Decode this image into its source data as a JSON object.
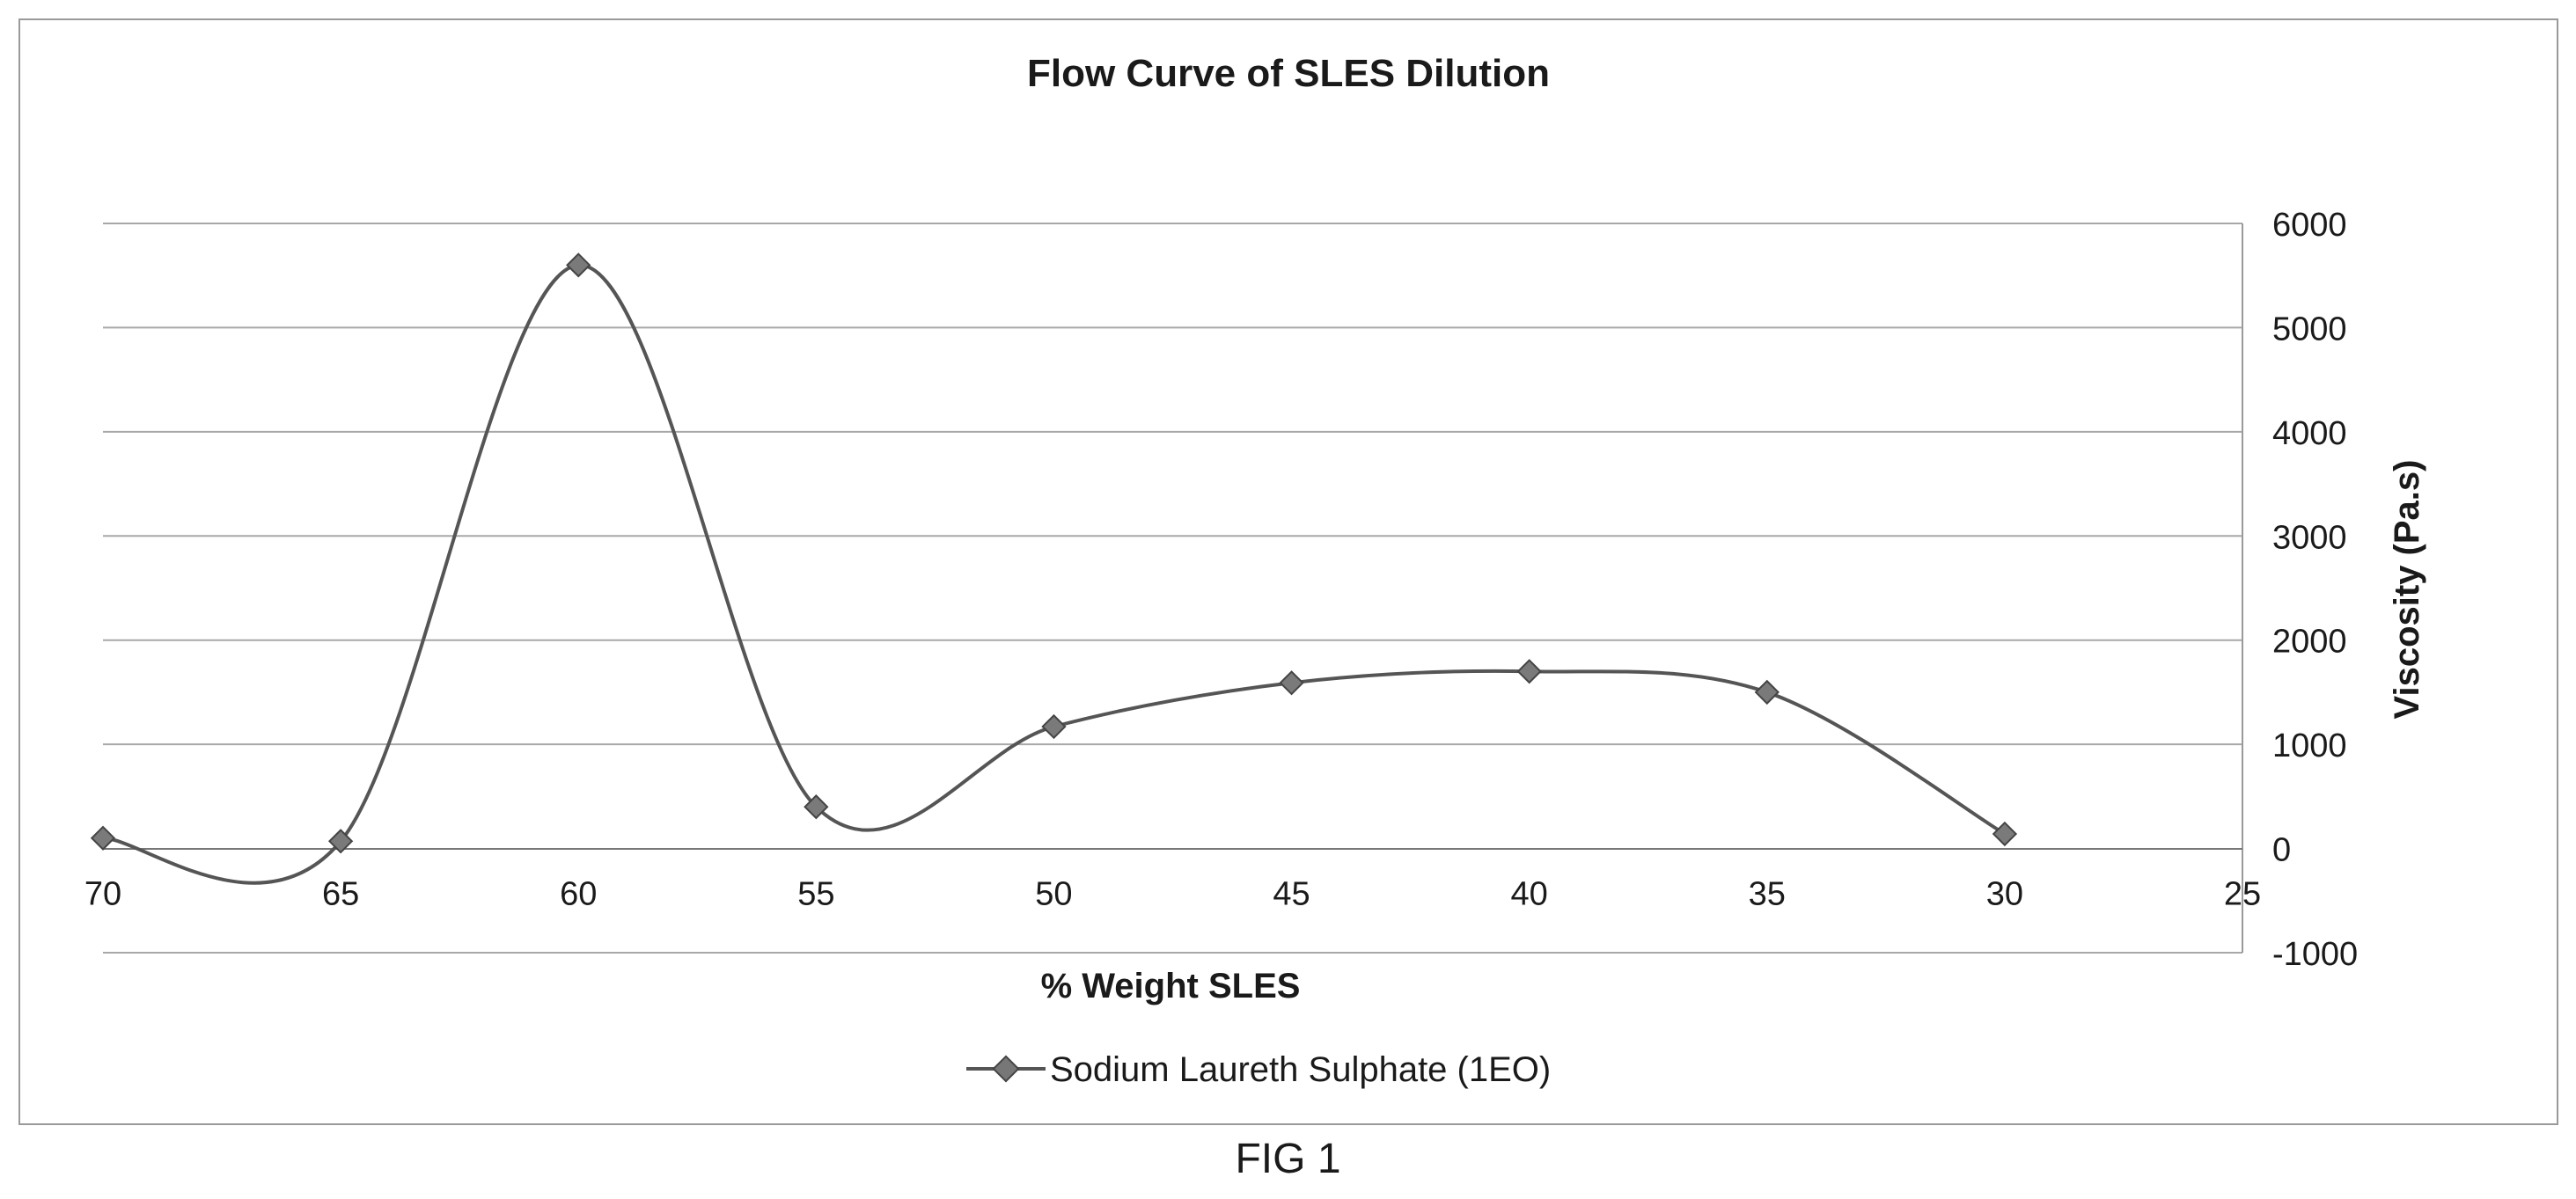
{
  "chart_data": {
    "type": "line",
    "title": "Flow Curve of SLES Dilution",
    "xlabel": "% Weight SLES",
    "ylabel": "Viscosity (Pa.s)",
    "x_reversed": true,
    "xlim": [
      70,
      25
    ],
    "ylim": [
      -1000,
      6000
    ],
    "x_ticks": [
      "70",
      "65",
      "60",
      "55",
      "50",
      "45",
      "40",
      "35",
      "30",
      "25"
    ],
    "y_ticks": [
      "-1000",
      "0",
      "1000",
      "2000",
      "3000",
      "4000",
      "5000",
      "6000"
    ],
    "y_axis_side": "right",
    "grid": "horizontal",
    "legend_position": "bottom",
    "smoothed": true,
    "series": [
      {
        "name": "Sodium Laureth Sulphate (1EO)",
        "color": "#555555",
        "marker": "diamond",
        "x": [
          70,
          65,
          60,
          55,
          50,
          45,
          40,
          35,
          30
        ],
        "y": [
          100,
          70,
          5600,
          400,
          1170,
          1590,
          1700,
          1500,
          140
        ]
      }
    ]
  },
  "figure_caption": "FIG 1"
}
